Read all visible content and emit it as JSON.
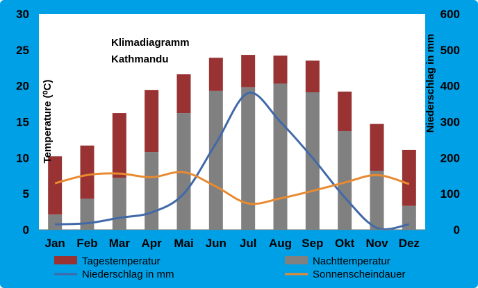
{
  "chart_data": {
    "type": "bar",
    "title": "Klimadiagramm",
    "subtitle": "Kathmandu",
    "ylabel": "Temperature (⁰C)",
    "y2label": "Niederschlag in mm",
    "ylim": [
      0,
      30
    ],
    "y2lim": [
      0,
      600
    ],
    "yticks": [
      "0",
      "5",
      "10",
      "15",
      "20",
      "25",
      "30"
    ],
    "y2ticks": [
      "0",
      "100",
      "200",
      "300",
      "400",
      "500",
      "600"
    ],
    "categories": [
      "Jan",
      "Feb",
      "Mar",
      "Apr",
      "Mai",
      "Jun",
      "Jul",
      "Aug",
      "Sep",
      "Okt",
      "Nov",
      "Dez"
    ],
    "series": [
      {
        "name": "Tagestemperatur",
        "kind": "bar-top",
        "color": "#993333",
        "values": [
          10.2,
          11.7,
          16.2,
          19.4,
          21.6,
          23.9,
          24.3,
          24.2,
          23.5,
          19.2,
          14.7,
          11.1
        ]
      },
      {
        "name": "Nachttemperatur",
        "kind": "bar-base",
        "color": "#808080",
        "values": [
          2.1,
          4.3,
          7.2,
          10.8,
          16.2,
          19.3,
          19.8,
          20.3,
          19.1,
          13.7,
          8.2,
          3.3
        ]
      },
      {
        "name": "Niederschlag in mm",
        "kind": "line",
        "axis": "y2",
        "color": "#4169a8",
        "values": [
          15,
          18,
          33,
          48,
          100,
          240,
          380,
          300,
          200,
          90,
          5,
          15
        ]
      },
      {
        "name": "Sonnenscheindauer",
        "kind": "line",
        "axis": "y2",
        "color": "#e88a30",
        "values": [
          129,
          152,
          156,
          146,
          160,
          120,
          73,
          87,
          108,
          131,
          152,
          127
        ]
      }
    ],
    "grid": false,
    "legend": "bottom"
  }
}
